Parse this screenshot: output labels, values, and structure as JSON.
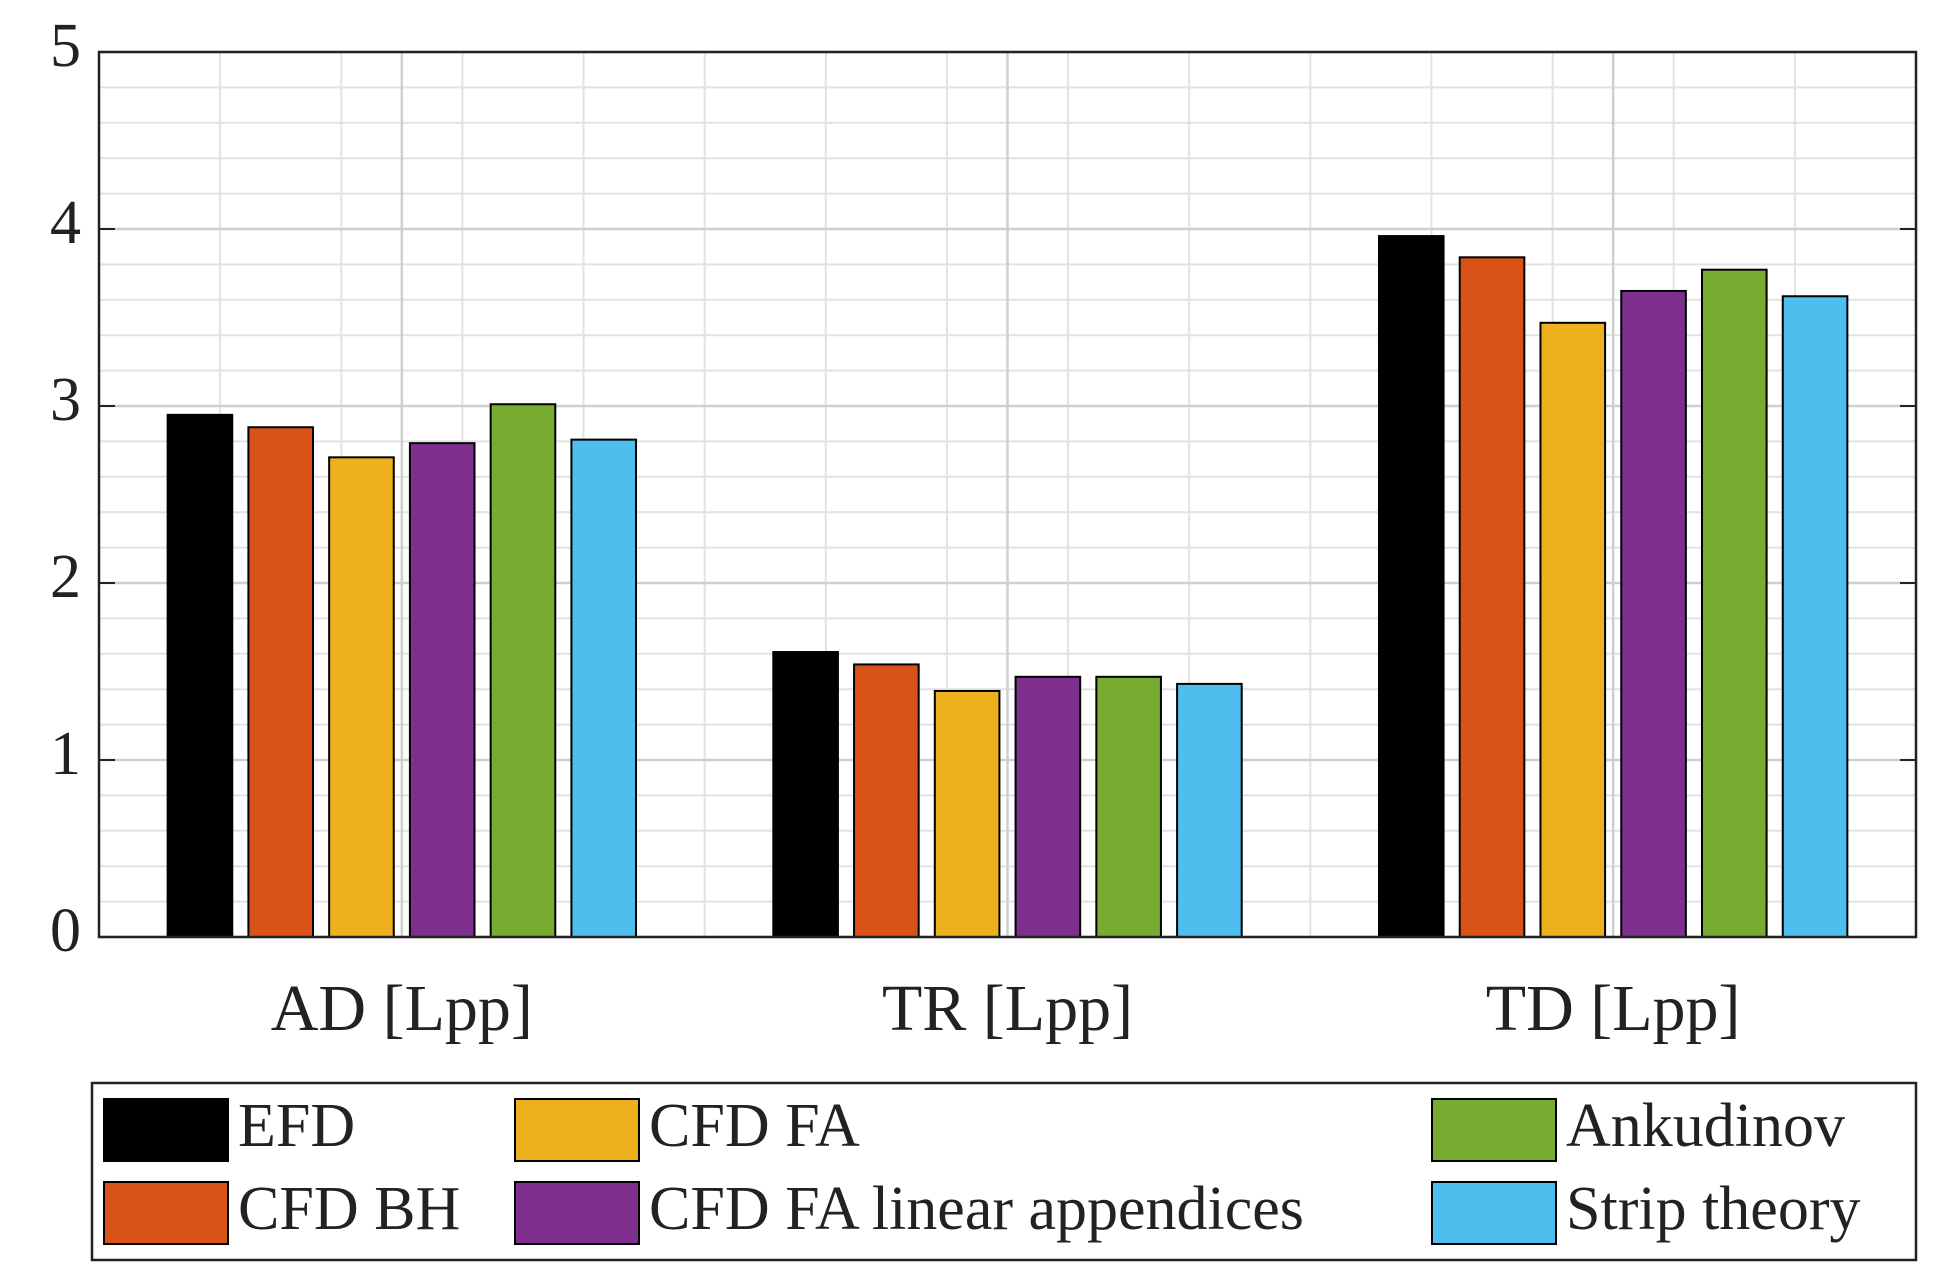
{
  "chart_data": {
    "type": "bar",
    "categories": [
      "AD [Lpp]",
      "TR [Lpp]",
      "TD [Lpp]"
    ],
    "series": [
      {
        "name": "EFD",
        "color": "#000000",
        "values": [
          2.95,
          1.61,
          3.96
        ]
      },
      {
        "name": "CFD BH",
        "color": "#d95319",
        "values": [
          2.88,
          1.54,
          3.84
        ]
      },
      {
        "name": "CFD FA",
        "color": "#edb120",
        "values": [
          2.71,
          1.39,
          3.47
        ]
      },
      {
        "name": "CFD FA linear appendices",
        "color": "#7e2f8e",
        "values": [
          2.79,
          1.47,
          3.65
        ]
      },
      {
        "name": "Ankudinov",
        "color": "#77ac30",
        "values": [
          3.01,
          1.47,
          3.77
        ]
      },
      {
        "name": "Strip theory",
        "color": "#4dbeee",
        "values": [
          2.81,
          1.43,
          3.62
        ]
      }
    ],
    "ylim": [
      0,
      5
    ],
    "yticks": [
      0,
      1,
      2,
      3,
      4,
      5
    ],
    "grid": true,
    "minor_grid": true,
    "legend": "bottom"
  }
}
